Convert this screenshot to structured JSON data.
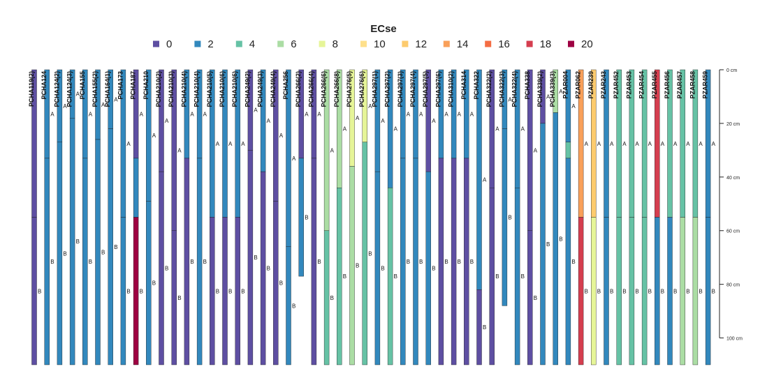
{
  "chart_data": {
    "type": "soil-profile-sketch",
    "legend": {
      "title": "ECse",
      "entries": [
        {
          "label": "0",
          "value": 0,
          "color": "#5E4FA2"
        },
        {
          "label": "2",
          "value": 2,
          "color": "#3288BD"
        },
        {
          "label": "4",
          "value": 4,
          "color": "#66C2A5"
        },
        {
          "label": "6",
          "value": 6,
          "color": "#ABDDA4"
        },
        {
          "label": "8",
          "value": 8,
          "color": "#E6F598"
        },
        {
          "label": "10",
          "value": 10,
          "color": "#FEE08B"
        },
        {
          "label": "12",
          "value": 12,
          "color": "#FDCB6E"
        },
        {
          "label": "14",
          "value": 14,
          "color": "#F9A05A"
        },
        {
          "label": "16",
          "value": 16,
          "color": "#F46D43"
        },
        {
          "label": "18",
          "value": 18,
          "color": "#D53E4F"
        },
        {
          "label": "20",
          "value": 20,
          "color": "#9E0142"
        }
      ]
    },
    "depth_axis": {
      "unit": "cm",
      "range": [
        0,
        110
      ],
      "ticks": [
        {
          "value": 0,
          "label": "0 cm"
        },
        {
          "value": 20,
          "label": "20 cm"
        },
        {
          "value": 40,
          "label": "40 cm"
        },
        {
          "value": 60,
          "label": "60 cm"
        },
        {
          "value": 80,
          "label": "80 cm"
        },
        {
          "value": 100,
          "label": "100 cm"
        }
      ]
    },
    "profiles": [
      {
        "name": "PCHA119(2)",
        "horizons": [
          {
            "name": "",
            "top": 0,
            "bottom": 55,
            "ec": 0
          },
          {
            "name": "B",
            "top": 55,
            "bottom": 110,
            "ec": 0
          }
        ]
      },
      {
        "name": "PCHA124",
        "horizons": [
          {
            "name": "A",
            "top": 0,
            "bottom": 33,
            "ec": 2
          },
          {
            "name": "B",
            "top": 33,
            "bottom": 110,
            "ec": 2
          }
        ]
      },
      {
        "name": "PCHA124(2)",
        "horizons": [
          {
            "name": "A",
            "top": 0,
            "bottom": 27,
            "ec": 2
          },
          {
            "name": "B",
            "top": 27,
            "bottom": 110,
            "ec": 2
          }
        ]
      },
      {
        "name": "PCHA124(3)",
        "horizons": [
          {
            "name": "A",
            "top": 0,
            "bottom": 18,
            "ec": 2
          },
          {
            "name": "B",
            "top": 18,
            "bottom": 110,
            "ec": 2
          }
        ]
      },
      {
        "name": "PCHA155",
        "horizons": [
          {
            "name": "A",
            "top": 0,
            "bottom": 33,
            "ec": 2
          },
          {
            "name": "B",
            "top": 33,
            "bottom": 110,
            "ec": 2
          }
        ]
      },
      {
        "name": "PCHA155(2)",
        "horizons": [
          {
            "name": "A",
            "top": 0,
            "bottom": 26,
            "ec": 2
          },
          {
            "name": "B",
            "top": 26,
            "bottom": 110,
            "ec": 2
          }
        ]
      },
      {
        "name": "PCHA164(1)",
        "horizons": [
          {
            "name": "A",
            "top": 0,
            "bottom": 22,
            "ec": 2
          },
          {
            "name": "B",
            "top": 22,
            "bottom": 110,
            "ec": 2
          }
        ]
      },
      {
        "name": "PCHA173",
        "horizons": [
          {
            "name": "A",
            "top": 0,
            "bottom": 55,
            "ec": 2
          },
          {
            "name": "B",
            "top": 55,
            "bottom": 110,
            "ec": 2
          }
        ]
      },
      {
        "name": "PCHA187",
        "horizons": [
          {
            "name": "A",
            "top": 0,
            "bottom": 33,
            "ec": 0
          },
          {
            "name": "",
            "top": 33,
            "bottom": 55,
            "ec": 2
          },
          {
            "name": "B",
            "top": 55,
            "bottom": 110,
            "ec": 20
          }
        ]
      },
      {
        "name": "PCHA210",
        "horizons": [
          {
            "name": "A",
            "top": 0,
            "bottom": 49,
            "ec": 2
          },
          {
            "name": "B",
            "top": 49,
            "bottom": 110,
            "ec": 2
          }
        ]
      },
      {
        "name": "PCHA210(2)",
        "horizons": [
          {
            "name": "A",
            "top": 0,
            "bottom": 38,
            "ec": 0
          },
          {
            "name": "B",
            "top": 38,
            "bottom": 110,
            "ec": 0
          }
        ]
      },
      {
        "name": "PCHA210(3)",
        "horizons": [
          {
            "name": "A",
            "top": 0,
            "bottom": 60,
            "ec": 0
          },
          {
            "name": "B",
            "top": 60,
            "bottom": 110,
            "ec": 0
          }
        ]
      },
      {
        "name": "PCHA210(4)",
        "horizons": [
          {
            "name": "A",
            "top": 0,
            "bottom": 33,
            "ec": 2
          },
          {
            "name": "B",
            "top": 33,
            "bottom": 110,
            "ec": 0
          }
        ]
      },
      {
        "name": "PCHA210(4)",
        "horizons": [
          {
            "name": "A",
            "top": 0,
            "bottom": 33,
            "ec": 2
          },
          {
            "name": "B",
            "top": 33,
            "bottom": 110,
            "ec": 2
          }
        ]
      },
      {
        "name": "PCHA210(5)",
        "horizons": [
          {
            "name": "A",
            "top": 0,
            "bottom": 55,
            "ec": 2
          },
          {
            "name": "B",
            "top": 55,
            "bottom": 110,
            "ec": 0
          }
        ]
      },
      {
        "name": "PCHA210(6)",
        "horizons": [
          {
            "name": "A",
            "top": 0,
            "bottom": 55,
            "ec": 2
          },
          {
            "name": "B",
            "top": 55,
            "bottom": 110,
            "ec": 0
          }
        ]
      },
      {
        "name": "PCHA210(6)",
        "horizons": [
          {
            "name": "A",
            "top": 0,
            "bottom": 55,
            "ec": 2
          },
          {
            "name": "B",
            "top": 55,
            "bottom": 110,
            "ec": 0
          }
        ]
      },
      {
        "name": "PCHA249(2)",
        "horizons": [
          {
            "name": "A",
            "top": 0,
            "bottom": 30,
            "ec": 0
          },
          {
            "name": "B",
            "top": 30,
            "bottom": 110,
            "ec": 0
          }
        ]
      },
      {
        "name": "PCHA249(3)",
        "horizons": [
          {
            "name": "A",
            "top": 0,
            "bottom": 38,
            "ec": 2
          },
          {
            "name": "B",
            "top": 38,
            "bottom": 110,
            "ec": 0
          }
        ]
      },
      {
        "name": "PCHA249(4)",
        "horizons": [
          {
            "name": "A",
            "top": 0,
            "bottom": 49,
            "ec": 0
          },
          {
            "name": "B",
            "top": 49,
            "bottom": 110,
            "ec": 0
          }
        ]
      },
      {
        "name": "PCHA256",
        "horizons": [
          {
            "name": "A",
            "top": 0,
            "bottom": 66,
            "ec": 2
          },
          {
            "name": "B",
            "top": 66,
            "bottom": 110,
            "ec": 2
          }
        ]
      },
      {
        "name": "PCHA266(2)",
        "horizons": [
          {
            "name": "A",
            "top": 0,
            "bottom": 33,
            "ec": 0
          },
          {
            "name": "B",
            "top": 33,
            "bottom": 77,
            "ec": 2
          }
        ]
      },
      {
        "name": "PCHA266(4)",
        "horizons": [
          {
            "name": "A",
            "top": 0,
            "bottom": 33,
            "ec": 0
          },
          {
            "name": "B",
            "top": 33,
            "bottom": 110,
            "ec": 0
          }
        ]
      },
      {
        "name": "PCHA266(6)",
        "horizons": [
          {
            "name": "A",
            "top": 0,
            "bottom": 60,
            "ec": 6
          },
          {
            "name": "B",
            "top": 60,
            "bottom": 110,
            "ec": 4
          }
        ]
      },
      {
        "name": "PCHA266(8)",
        "horizons": [
          {
            "name": "A",
            "top": 0,
            "bottom": 44,
            "ec": 6
          },
          {
            "name": "B",
            "top": 44,
            "bottom": 110,
            "ec": 4
          }
        ]
      },
      {
        "name": "PCHA276(5)",
        "horizons": [
          {
            "name": "A",
            "top": 0,
            "bottom": 36,
            "ec": 8
          },
          {
            "name": "B",
            "top": 36,
            "bottom": 110,
            "ec": 6
          }
        ]
      },
      {
        "name": "PCHA276(6)",
        "horizons": [
          {
            "name": "A",
            "top": 0,
            "bottom": 27,
            "ec": 8
          },
          {
            "name": "B",
            "top": 27,
            "bottom": 110,
            "ec": 4
          }
        ]
      },
      {
        "name": "PCHA297(1)",
        "horizons": [
          {
            "name": "A",
            "top": 0,
            "bottom": 38,
            "ec": 2
          },
          {
            "name": "B",
            "top": 38,
            "bottom": 110,
            "ec": 2
          }
        ]
      },
      {
        "name": "PCHA297(2)",
        "horizons": [
          {
            "name": "A",
            "top": 0,
            "bottom": 44,
            "ec": 2
          },
          {
            "name": "B",
            "top": 44,
            "bottom": 110,
            "ec": 4
          }
        ]
      },
      {
        "name": "PCHA297(3)",
        "horizons": [
          {
            "name": "A",
            "top": 0,
            "bottom": 33,
            "ec": 2
          },
          {
            "name": "B",
            "top": 33,
            "bottom": 110,
            "ec": 2
          }
        ]
      },
      {
        "name": "PCHA297(4)",
        "horizons": [
          {
            "name": "A",
            "top": 0,
            "bottom": 33,
            "ec": 2
          },
          {
            "name": "B",
            "top": 33,
            "bottom": 110,
            "ec": 2
          }
        ]
      },
      {
        "name": "PCHA297(5)",
        "horizons": [
          {
            "name": "A",
            "top": 0,
            "bottom": 38,
            "ec": 0
          },
          {
            "name": "B",
            "top": 38,
            "bottom": 110,
            "ec": 2
          }
        ]
      },
      {
        "name": "PCHA297(6)",
        "horizons": [
          {
            "name": "A",
            "top": 0,
            "bottom": 33,
            "ec": 2
          },
          {
            "name": "B",
            "top": 33,
            "bottom": 110,
            "ec": 0
          }
        ]
      },
      {
        "name": "PCHA310(2)",
        "horizons": [
          {
            "name": "A",
            "top": 0,
            "bottom": 33,
            "ec": 2
          },
          {
            "name": "B",
            "top": 33,
            "bottom": 110,
            "ec": 0
          }
        ]
      },
      {
        "name": "PCHA314",
        "horizons": [
          {
            "name": "A",
            "top": 0,
            "bottom": 33,
            "ec": 2
          },
          {
            "name": "B",
            "top": 33,
            "bottom": 110,
            "ec": 0
          }
        ]
      },
      {
        "name": "PCHA322",
        "horizons": [
          {
            "name": "A",
            "top": 0,
            "bottom": 82,
            "ec": 2
          },
          {
            "name": "B",
            "top": 82,
            "bottom": 110,
            "ec": 0
          }
        ]
      },
      {
        "name": "PCHA322(2)",
        "horizons": [
          {
            "name": "A",
            "top": 0,
            "bottom": 44,
            "ec": 0
          },
          {
            "name": "B",
            "top": 44,
            "bottom": 110,
            "ec": 0
          }
        ]
      },
      {
        "name": "PCHA322(3)",
        "horizons": [
          {
            "name": "A",
            "top": 0,
            "bottom": 22,
            "ec": 2
          },
          {
            "name": "B",
            "top": 22,
            "bottom": 88,
            "ec": 2
          }
        ]
      },
      {
        "name": "PCHA322(4)",
        "horizons": [
          {
            "name": "A",
            "top": 0,
            "bottom": 44,
            "ec": 2
          },
          {
            "name": "B",
            "top": 44,
            "bottom": 110,
            "ec": 2
          }
        ]
      },
      {
        "name": "PCHA338",
        "horizons": [
          {
            "name": "A",
            "top": 0,
            "bottom": 60,
            "ec": 0
          },
          {
            "name": "B",
            "top": 60,
            "bottom": 110,
            "ec": 0
          }
        ]
      },
      {
        "name": "PCHA339(2)",
        "horizons": [
          {
            "name": "A",
            "top": 0,
            "bottom": 20,
            "ec": 0
          },
          {
            "name": "B",
            "top": 20,
            "bottom": 110,
            "ec": 2
          }
        ]
      },
      {
        "name": "PCHA339(3)",
        "horizons": [
          {
            "name": "A",
            "top": 0,
            "bottom": 16,
            "ec": 6
          },
          {
            "name": "B",
            "top": 16,
            "bottom": 110,
            "ec": 2
          }
        ]
      },
      {
        "name": "PZAR004",
        "horizons": [
          {
            "name": "A",
            "top": 0,
            "bottom": 27,
            "ec": 2
          },
          {
            "name": "",
            "top": 27,
            "bottom": 33,
            "ec": 4
          },
          {
            "name": "B",
            "top": 33,
            "bottom": 110,
            "ec": 2
          }
        ]
      },
      {
        "name": "PZAR062",
        "horizons": [
          {
            "name": "A",
            "top": 0,
            "bottom": 55,
            "ec": 14
          },
          {
            "name": "B",
            "top": 55,
            "bottom": 110,
            "ec": 18
          }
        ]
      },
      {
        "name": "PZAR239",
        "horizons": [
          {
            "name": "A",
            "top": 0,
            "bottom": 55,
            "ec": 12
          },
          {
            "name": "B",
            "top": 55,
            "bottom": 110,
            "ec": 8
          }
        ]
      },
      {
        "name": "PZAR243",
        "horizons": [
          {
            "name": "A",
            "top": 0,
            "bottom": 55,
            "ec": 2
          },
          {
            "name": "B",
            "top": 55,
            "bottom": 110,
            "ec": 2
          }
        ]
      },
      {
        "name": "PZAR452",
        "horizons": [
          {
            "name": "A",
            "top": 0,
            "bottom": 55,
            "ec": 4
          },
          {
            "name": "B",
            "top": 55,
            "bottom": 110,
            "ec": 4
          }
        ]
      },
      {
        "name": "PZAR453",
        "horizons": [
          {
            "name": "A",
            "top": 0,
            "bottom": 55,
            "ec": 4
          },
          {
            "name": "B",
            "top": 55,
            "bottom": 110,
            "ec": 4
          }
        ]
      },
      {
        "name": "PZAR454",
        "horizons": [
          {
            "name": "A",
            "top": 0,
            "bottom": 55,
            "ec": 4
          },
          {
            "name": "B",
            "top": 55,
            "bottom": 110,
            "ec": 4
          }
        ]
      },
      {
        "name": "PZAR455",
        "horizons": [
          {
            "name": "A",
            "top": 0,
            "bottom": 55,
            "ec": 18
          },
          {
            "name": "B",
            "top": 55,
            "bottom": 110,
            "ec": 2
          }
        ]
      },
      {
        "name": "PZAR456",
        "horizons": [
          {
            "name": "A",
            "top": 0,
            "bottom": 55,
            "ec": 4
          },
          {
            "name": "B",
            "top": 55,
            "bottom": 110,
            "ec": 2
          }
        ]
      },
      {
        "name": "PZAR457",
        "horizons": [
          {
            "name": "A",
            "top": 0,
            "bottom": 55,
            "ec": 4
          },
          {
            "name": "B",
            "top": 55,
            "bottom": 110,
            "ec": 6
          }
        ]
      },
      {
        "name": "PZAR458",
        "horizons": [
          {
            "name": "A",
            "top": 0,
            "bottom": 55,
            "ec": 4
          },
          {
            "name": "B",
            "top": 55,
            "bottom": 110,
            "ec": 6
          }
        ]
      },
      {
        "name": "PZAR459",
        "horizons": [
          {
            "name": "A",
            "top": 0,
            "bottom": 55,
            "ec": 2
          },
          {
            "name": "B",
            "top": 55,
            "bottom": 110,
            "ec": 2
          }
        ]
      }
    ]
  }
}
